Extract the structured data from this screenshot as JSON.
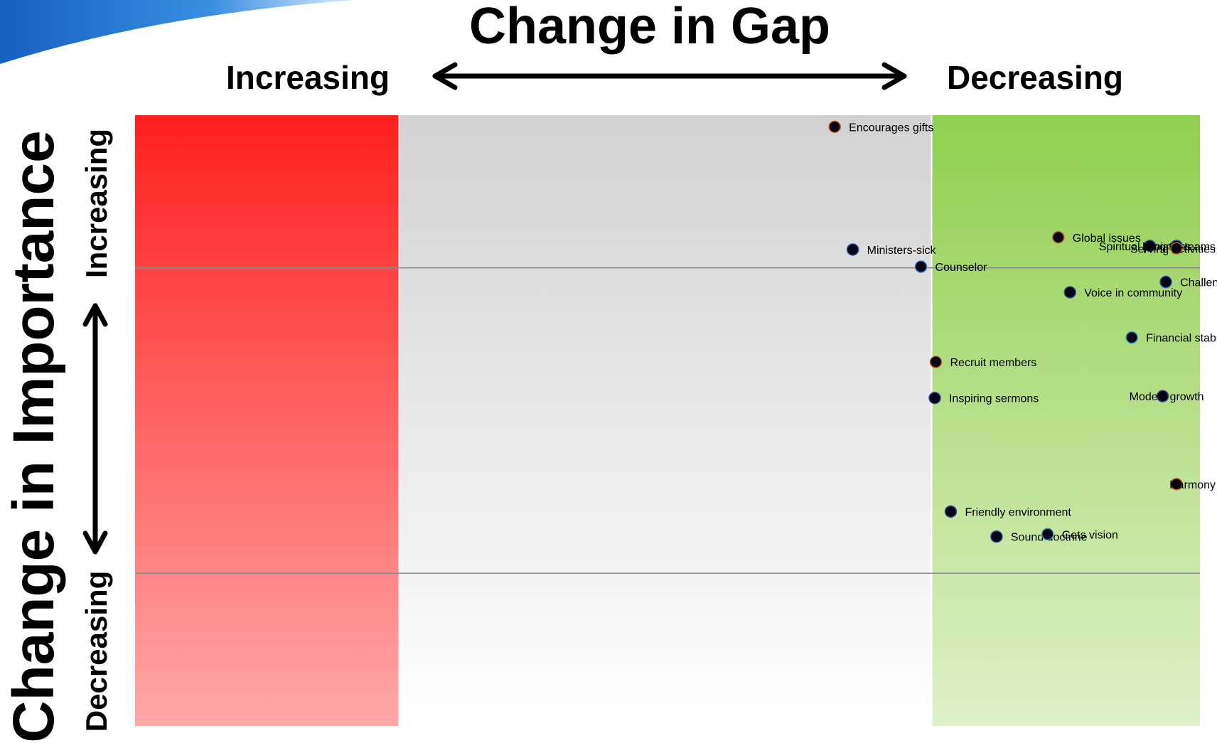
{
  "header": {
    "title": "Change in Gap",
    "gap_increasing": "Increasing",
    "gap_decreasing": "Decreasing"
  },
  "side": {
    "title": "Change in Importance",
    "importance_increasing": "Increasing",
    "importance_decreasing": "Decreasing"
  },
  "colors": {
    "red_zone_top": "#ff1f1f",
    "red_zone_bottom": "#ffa8a8",
    "neutral_zone_top": "#d2d2d2",
    "neutral_zone_bottom": "#ffffff",
    "green_zone_top": "#90d050",
    "green_zone_bottom": "#dff0c8",
    "marker": "#050515",
    "swoosh": "#1f6fc8"
  },
  "chart_data": {
    "type": "scatter",
    "title": "Change in Gap",
    "xlabel": "Change in Gap",
    "ylabel": "Change in Importance",
    "grid": false,
    "xlim": [
      0,
      100
    ],
    "ylim": [
      0,
      100
    ],
    "zones": [
      {
        "name": "Increasing",
        "x_from": 0,
        "x_to": 24.8
      },
      {
        "name": "",
        "x_from": 24.8,
        "x_to": 74.8
      },
      {
        "name": "Decreasing",
        "x_from": 74.8,
        "x_to": 100
      }
    ],
    "reference_lines_y": [
      75,
      25
    ],
    "points": [
      {
        "label": "Encourages gifts",
        "x": 65.7,
        "y": 98.1,
        "ring": "#c06020",
        "anchor": "start"
      },
      {
        "label": "Ministers-sick",
        "x": 67.4,
        "y": 78.0,
        "ring": "#3050a0",
        "anchor": "start"
      },
      {
        "label": "Counselor",
        "x": 73.8,
        "y": 75.2,
        "ring": "#3080c0",
        "anchor": "start"
      },
      {
        "label": "Global issues",
        "x": 86.7,
        "y": 80.0,
        "ring": "#c06020",
        "anchor": "start"
      },
      {
        "label": "Spiritual programs",
        "x": 95.3,
        "y": 78.6,
        "ring": "#3050a0",
        "anchor": "end"
      },
      {
        "label": "Ministry teams",
        "x": 97.8,
        "y": 78.6,
        "ring": "#3050a0",
        "anchor": "end"
      },
      {
        "label": "Serving activities",
        "x": 97.8,
        "y": 78.2,
        "ring": "#c06020",
        "anchor": "end"
      },
      {
        "label": "Challenges",
        "x": 96.8,
        "y": 72.7,
        "ring": "#3050a0",
        "anchor": "start"
      },
      {
        "label": "Voice in community",
        "x": 87.8,
        "y": 71.0,
        "ring": "#3050a0",
        "anchor": "start"
      },
      {
        "label": "Financial stability",
        "x": 93.6,
        "y": 63.6,
        "ring": "#3090c0",
        "anchor": "start"
      },
      {
        "label": "Recruit members",
        "x": 75.2,
        "y": 59.6,
        "ring": "#c06020",
        "anchor": "start"
      },
      {
        "label": "Inspiring sermons",
        "x": 75.1,
        "y": 53.7,
        "ring": "#3050a0",
        "anchor": "start"
      },
      {
        "label": "Modest growth",
        "x": 96.5,
        "y": 54.0,
        "ring": "#3050a0",
        "anchor": "end"
      },
      {
        "label": "Harmony",
        "x": 97.8,
        "y": 39.6,
        "ring": "#c06020",
        "anchor": "end"
      },
      {
        "label": "Friendly environment",
        "x": 76.6,
        "y": 35.1,
        "ring": "#3050a0",
        "anchor": "start"
      },
      {
        "label": "Sound doctrine",
        "x": 80.9,
        "y": 31.0,
        "ring": "#3050a0",
        "anchor": "start"
      },
      {
        "label": "Gets vision",
        "x": 85.7,
        "y": 31.4,
        "ring": "#3090c0",
        "anchor": "start"
      }
    ]
  }
}
